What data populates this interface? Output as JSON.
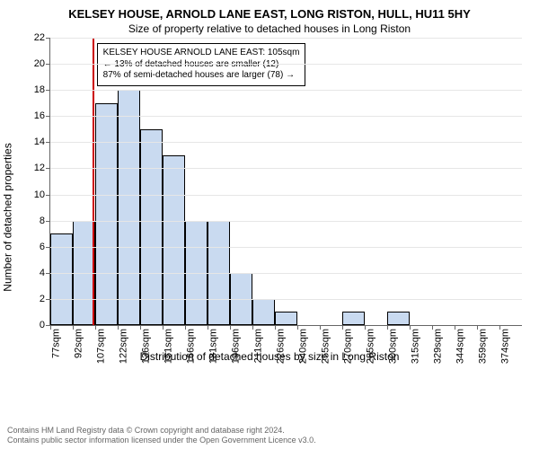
{
  "title": "KELSEY HOUSE, ARNOLD LANE EAST, LONG RISTON, HULL, HU11 5HY",
  "subtitle": "Size of property relative to detached houses in Long Riston",
  "ylabel": "Number of detached properties",
  "xlabel": "Distribution of detached houses by size in Long Riston",
  "chart": {
    "type": "histogram",
    "background_color": "#ffffff",
    "grid_color": "#e6e6e6",
    "axis_color": "#666666",
    "bar_fill": "#c9daf0",
    "bar_border": "#000000",
    "marker_color": "#cc0000",
    "ylim": [
      0,
      22
    ],
    "ytick_step": 2,
    "tick_fontsize": 11,
    "label_fontsize": 12,
    "title_fontsize": 13,
    "xticks": [
      "77sqm",
      "92sqm",
      "107sqm",
      "122sqm",
      "136sqm",
      "151sqm",
      "166sqm",
      "181sqm",
      "196sqm",
      "211sqm",
      "226sqm",
      "240sqm",
      "255sqm",
      "270sqm",
      "285sqm",
      "300sqm",
      "315sqm",
      "329sqm",
      "344sqm",
      "359sqm",
      "374sqm"
    ],
    "values": [
      7,
      8,
      17,
      18,
      15,
      13,
      8,
      8,
      4,
      2,
      1,
      0,
      0,
      1,
      0,
      1,
      0,
      0,
      0,
      0,
      0
    ],
    "marker_position_sqm": 105
  },
  "annotation": {
    "lines": [
      "KELSEY HOUSE ARNOLD LANE EAST: 105sqm",
      "← 13% of detached houses are smaller (12)",
      "87% of semi-detached houses are larger (78) →"
    ]
  },
  "footer": {
    "line1": "Contains HM Land Registry data © Crown copyright and database right 2024.",
    "line2": "Contains public sector information licensed under the Open Government Licence v3.0."
  }
}
